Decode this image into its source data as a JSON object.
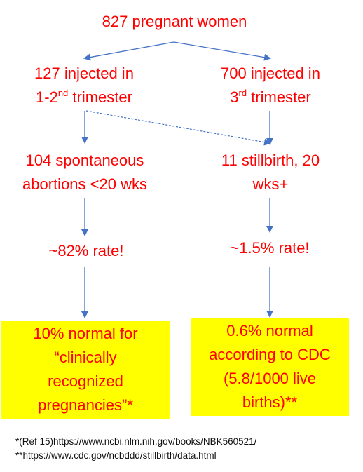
{
  "root": {
    "text": "827 pregnant women"
  },
  "left": {
    "group": {
      "line1": "127 injected in",
      "line2_prefix": "1-2",
      "line2_sup": "nd",
      "line2_suffix": " trimester"
    },
    "outcome": {
      "line1": "104 spontaneous",
      "line2": "abortions <20 wks"
    },
    "rate": {
      "text": "~82% rate!"
    },
    "normal": {
      "lines": [
        "10% normal for",
        "“clinically",
        "recognized",
        "pregnancies”*"
      ]
    }
  },
  "right": {
    "group": {
      "line1": "700 injected in",
      "line2_prefix": "3",
      "line2_sup": "rd",
      "line2_suffix": " trimester"
    },
    "outcome": {
      "line1": "11 stillbirth, 20",
      "line2": "wks+"
    },
    "rate": {
      "text": "~1.5% rate!"
    },
    "normal": {
      "lines": [
        "0.6% normal",
        "according to CDC",
        "(5.8/1000 live",
        "births)**"
      ]
    }
  },
  "footnotes": {
    "ref1": "*(Ref 15)https://www.ncbi.nlm.nih.gov/books/NBK560521/",
    "ref2": "**https://www.cdc.gov/ncbddd/stillbirth/data.html"
  },
  "colors": {
    "text": "#ff0000",
    "arrow": "#4472c4",
    "highlight_box": "#ffff00",
    "footnote_text": "#111111"
  }
}
